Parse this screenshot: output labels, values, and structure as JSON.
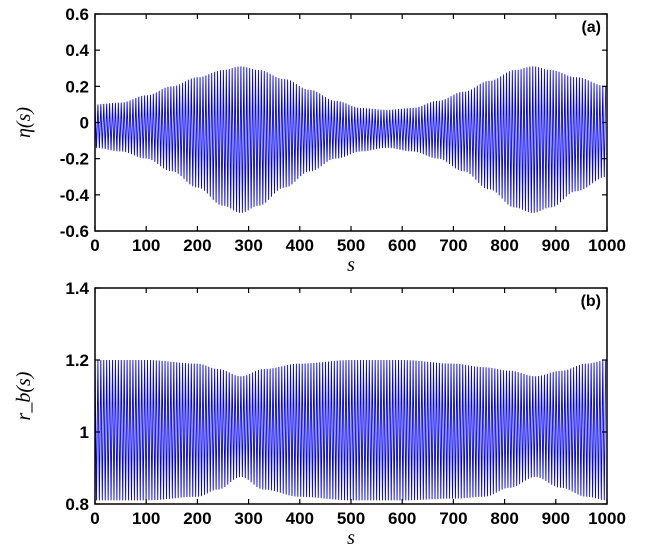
{
  "chart_data": [
    {
      "type": "line",
      "panel_label": "(a)",
      "xlabel": "s",
      "ylabel": "η(s)",
      "xlim": [
        0,
        1000
      ],
      "ylim": [
        -0.6,
        0.6
      ],
      "xticks": [
        "0",
        "100",
        "200",
        "300",
        "400",
        "500",
        "600",
        "700",
        "800",
        "900",
        "1000"
      ],
      "yticks": [
        "-0.6",
        "-0.4",
        "-0.2",
        "0",
        "0.2",
        "0.4",
        "0.6"
      ],
      "grid": false,
      "color": "#0000ff",
      "series": [
        {
          "description_type": "rapid oscillation between upper and lower envelopes",
          "envelope_s": [
            0,
            50,
            100,
            150,
            200,
            250,
            285,
            320,
            370,
            420,
            470,
            520,
            570,
            620,
            670,
            720,
            770,
            820,
            855,
            890,
            940,
            1000
          ],
          "upper": [
            0.1,
            0.11,
            0.15,
            0.2,
            0.25,
            0.29,
            0.31,
            0.29,
            0.24,
            0.18,
            0.12,
            0.08,
            0.07,
            0.08,
            0.12,
            0.17,
            0.23,
            0.29,
            0.31,
            0.29,
            0.25,
            0.2
          ],
          "lower": [
            -0.14,
            -0.16,
            -0.2,
            -0.27,
            -0.36,
            -0.46,
            -0.5,
            -0.46,
            -0.36,
            -0.27,
            -0.2,
            -0.16,
            -0.14,
            -0.16,
            -0.2,
            -0.27,
            -0.37,
            -0.47,
            -0.5,
            -0.47,
            -0.38,
            -0.3
          ],
          "oscillation_period_s": 5.7
        }
      ]
    },
    {
      "type": "line",
      "panel_label": "(b)",
      "xlabel": "s",
      "ylabel": "r_b(s)",
      "xlim": [
        0,
        1000
      ],
      "ylim": [
        0.8,
        1.4
      ],
      "xticks": [
        "0",
        "100",
        "200",
        "300",
        "400",
        "500",
        "600",
        "700",
        "800",
        "900",
        "1000"
      ],
      "yticks": [
        "0.8",
        "1",
        "1.2",
        "1.4"
      ],
      "grid": false,
      "color": "#0000ff",
      "series": [
        {
          "description_type": "rapid oscillation between upper and lower envelopes",
          "envelope_s": [
            0,
            100,
            200,
            240,
            285,
            330,
            400,
            500,
            600,
            700,
            760,
            810,
            860,
            910,
            960,
            1000
          ],
          "upper": [
            1.2,
            1.2,
            1.19,
            1.175,
            1.155,
            1.175,
            1.19,
            1.2,
            1.2,
            1.19,
            1.18,
            1.17,
            1.155,
            1.17,
            1.19,
            1.2
          ],
          "lower": [
            0.81,
            0.81,
            0.82,
            0.84,
            0.875,
            0.84,
            0.82,
            0.81,
            0.81,
            0.815,
            0.82,
            0.845,
            0.875,
            0.845,
            0.82,
            0.81
          ],
          "oscillation_period_s": 5.7
        }
      ]
    }
  ]
}
